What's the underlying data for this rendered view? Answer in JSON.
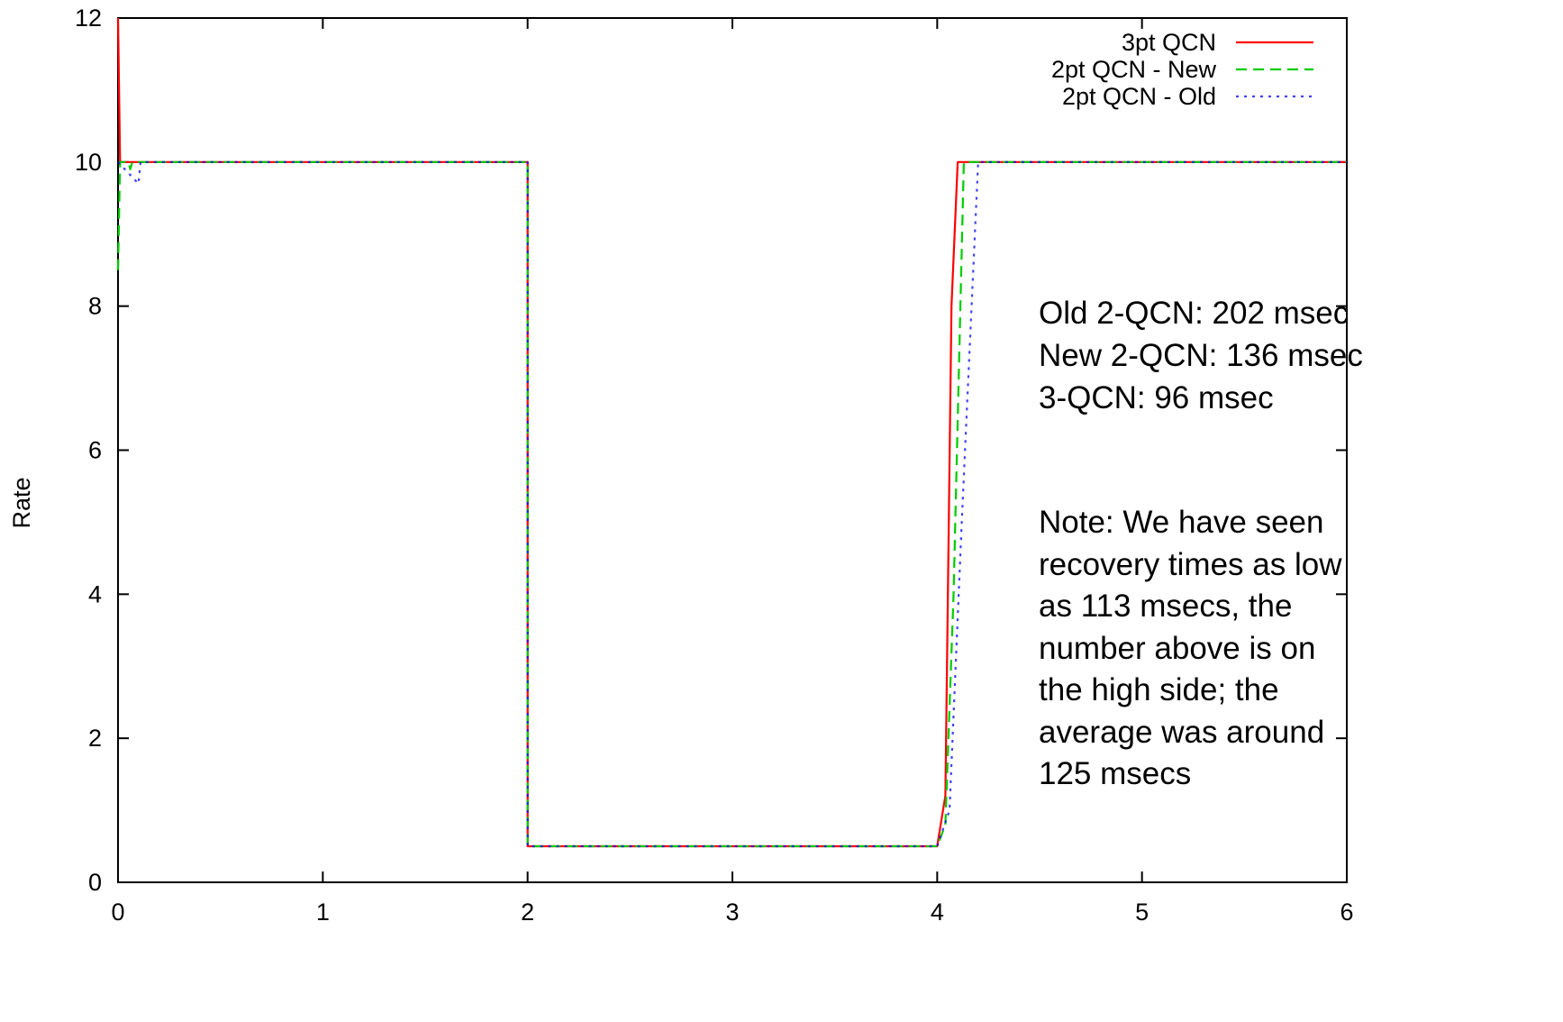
{
  "chart_data": {
    "type": "line",
    "title": "",
    "xlabel": "",
    "ylabel": "Rate",
    "xlim": [
      0,
      6
    ],
    "ylim": [
      0,
      12
    ],
    "x_ticks": [
      0,
      1,
      2,
      3,
      4,
      5,
      6
    ],
    "y_ticks": [
      0,
      2,
      4,
      6,
      8,
      10,
      12
    ],
    "x_tick_labels": [
      "0",
      "1",
      "2",
      "3",
      "4",
      "5",
      "6"
    ],
    "y_tick_labels": [
      "0",
      "2",
      "4",
      "6",
      "8",
      "10",
      "12"
    ],
    "grid": false,
    "legend_position": "top-right",
    "series": [
      {
        "name": "3pt QCN",
        "color": "#ff0000",
        "dash": "solid",
        "points": [
          [
            0,
            12
          ],
          [
            0.01,
            10
          ],
          [
            2.0,
            10
          ],
          [
            2.0,
            0.5
          ],
          [
            4.0,
            0.5
          ],
          [
            4.04,
            1.2
          ],
          [
            4.07,
            8
          ],
          [
            4.1,
            10
          ],
          [
            6.0,
            10
          ]
        ]
      },
      {
        "name": "2pt QCN - New",
        "color": "#00cc00",
        "dash": "dashed",
        "points": [
          [
            0,
            8.5
          ],
          [
            0.01,
            10
          ],
          [
            0.05,
            10
          ],
          [
            0.06,
            9.9
          ],
          [
            0.07,
            10
          ],
          [
            2.0,
            10
          ],
          [
            2.0,
            0.5
          ],
          [
            4.0,
            0.5
          ],
          [
            4.04,
            0.8
          ],
          [
            4.08,
            4
          ],
          [
            4.13,
            10
          ],
          [
            6.0,
            10
          ]
        ]
      },
      {
        "name": "2pt QCN - Old",
        "color": "#0000ff",
        "dash": "dotted",
        "points": [
          [
            0,
            10
          ],
          [
            0.1,
            9.7
          ],
          [
            0.11,
            10
          ],
          [
            2.0,
            10
          ],
          [
            2.0,
            0.5
          ],
          [
            4.0,
            0.5
          ],
          [
            4.06,
            1
          ],
          [
            4.12,
            5
          ],
          [
            4.2,
            10
          ],
          [
            6.0,
            10
          ]
        ]
      }
    ],
    "annotations": [
      "Old 2-QCN: 202 msec",
      "New 2-QCN: 136 msec",
      "3-QCN: 96 msec",
      "Note: We have seen",
      "recovery times as low",
      "as 113 msecs, the",
      "number above is on",
      "the high side; the",
      "average was around",
      "125 msecs"
    ]
  }
}
